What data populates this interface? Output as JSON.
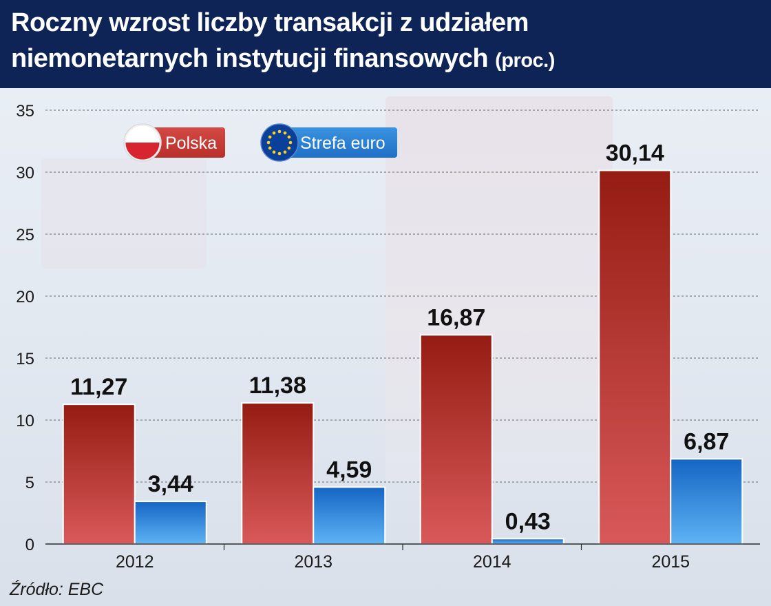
{
  "header": {
    "title_line1": "Roczny wzrost liczby transakcji z udziałem",
    "title_line2": "niemonetarnych instytucji finansowych",
    "unit": "(proc.)"
  },
  "source": "Źródło: EBC",
  "colors": {
    "header_bg": "#0f2456",
    "polska": "#c0362c",
    "strefa_euro": "#2f86d8"
  },
  "chart_data": {
    "type": "bar",
    "categories": [
      "2012",
      "2013",
      "2014",
      "2015"
    ],
    "series": [
      {
        "name": "Polska",
        "values": [
          11.27,
          11.38,
          16.87,
          30.14
        ],
        "labels": [
          "11,27",
          "11,38",
          "16,87",
          "30,14"
        ],
        "color": "#c0362c",
        "legend_icon": "poland-flag-icon"
      },
      {
        "name": "Strefa euro",
        "values": [
          3.44,
          4.59,
          0.43,
          6.87
        ],
        "labels": [
          "3,44",
          "4,59",
          "0,43",
          "6,87"
        ],
        "color": "#2f86d8",
        "legend_icon": "eu-flag-icon"
      }
    ],
    "yticks": [
      "0",
      "5",
      "10",
      "15",
      "20",
      "25",
      "30",
      "35"
    ],
    "ylim": [
      0,
      35
    ],
    "grid": true,
    "legend": "top-left"
  }
}
